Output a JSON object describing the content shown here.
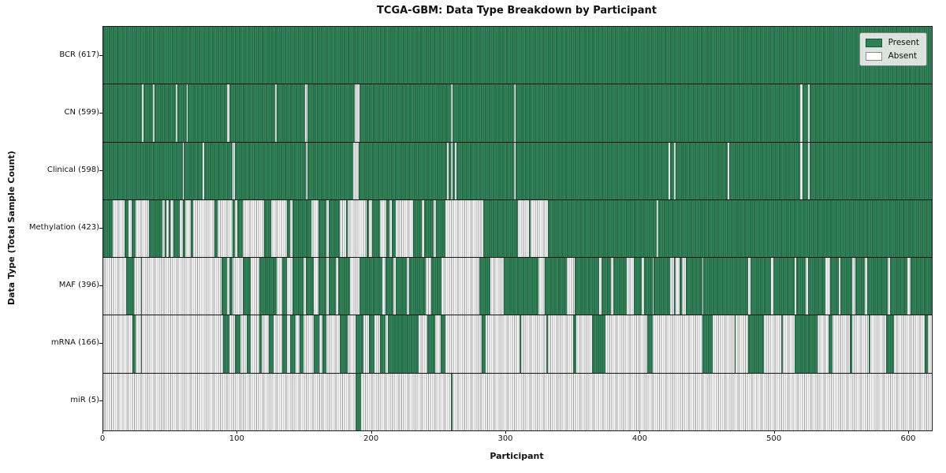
{
  "legend": {
    "present_label": "Present",
    "absent_label": "Absent"
  },
  "colors": {
    "present": "#2e8155",
    "present_edge": "#1d5338",
    "absent": "#ffffff",
    "absent_edge": "#9e9e9e",
    "legend_bg": "#e9ede9",
    "spine": "#1c1c1c"
  },
  "chart_data": {
    "type": "heatmap",
    "title": "TCGA-GBM: Data Type Breakdown by Participant",
    "xlabel": "Participant",
    "ylabel": "Data Type (Total Sample Count)",
    "legend_entries": [
      "Present",
      "Absent"
    ],
    "legend_position": "upper right",
    "x_max": 617,
    "x_ticks": [
      0,
      100,
      200,
      300,
      400,
      500,
      600
    ],
    "value_encoding": {
      "present": 1,
      "absent": 0
    },
    "rows": [
      {
        "label": "BCR (617)",
        "data_type": "BCR",
        "total": 617,
        "present_ranges": [
          [
            0,
            617
          ]
        ]
      },
      {
        "label": "CN (599)",
        "data_type": "CN",
        "total": 599,
        "present_ranges": [
          [
            0,
            29
          ],
          [
            30,
            37
          ],
          [
            38,
            54
          ],
          [
            55,
            62
          ],
          [
            63,
            92
          ],
          [
            94,
            128
          ],
          [
            129,
            150
          ],
          [
            152,
            187
          ],
          [
            191,
            259
          ],
          [
            260,
            306
          ],
          [
            307,
            519
          ],
          [
            521,
            525
          ],
          [
            526,
            617
          ]
        ]
      },
      {
        "label": "Clinical (598)",
        "data_type": "Clinical",
        "total": 598,
        "present_ranges": [
          [
            0,
            59
          ],
          [
            60,
            74
          ],
          [
            75,
            96
          ],
          [
            98,
            151
          ],
          [
            152,
            186
          ],
          [
            190,
            256
          ],
          [
            257,
            259
          ],
          [
            260,
            262
          ],
          [
            263,
            306
          ],
          [
            307,
            421
          ],
          [
            422,
            425
          ],
          [
            426,
            465
          ],
          [
            466,
            519
          ],
          [
            521,
            525
          ],
          [
            526,
            617
          ]
        ]
      },
      {
        "label": "Methylation (423)",
        "data_type": "Methylation",
        "total": 423,
        "present_ranges": [
          [
            0,
            7
          ],
          [
            16,
            19
          ],
          [
            21,
            24
          ],
          [
            34,
            44
          ],
          [
            46,
            47
          ],
          [
            49,
            50
          ],
          [
            52,
            57
          ],
          [
            59,
            61
          ],
          [
            65,
            67
          ],
          [
            83,
            85
          ],
          [
            96,
            98
          ],
          [
            100,
            104
          ],
          [
            120,
            125
          ],
          [
            137,
            139
          ],
          [
            141,
            155
          ],
          [
            160,
            166
          ],
          [
            168,
            176
          ],
          [
            181,
            182
          ],
          [
            196,
            198
          ],
          [
            200,
            206
          ],
          [
            211,
            213
          ],
          [
            215,
            218
          ],
          [
            231,
            237
          ],
          [
            239,
            246
          ],
          [
            248,
            255
          ],
          [
            283,
            309
          ],
          [
            317,
            318
          ],
          [
            331,
            412
          ],
          [
            413,
            617
          ]
        ]
      },
      {
        "label": "MAF (396)",
        "data_type": "MAF",
        "total": 396,
        "present_ranges": [
          [
            17,
            23
          ],
          [
            28,
            29
          ],
          [
            88,
            92
          ],
          [
            94,
            96
          ],
          [
            104,
            110
          ],
          [
            116,
            129
          ],
          [
            133,
            137
          ],
          [
            141,
            149
          ],
          [
            151,
            157
          ],
          [
            160,
            166
          ],
          [
            168,
            173
          ],
          [
            175,
            184
          ],
          [
            191,
            208
          ],
          [
            210,
            216
          ],
          [
            218,
            226
          ],
          [
            228,
            240
          ],
          [
            244,
            252
          ],
          [
            280,
            288
          ],
          [
            298,
            324
          ],
          [
            329,
            345
          ],
          [
            351,
            369
          ],
          [
            371,
            378
          ],
          [
            380,
            390
          ],
          [
            395,
            401
          ],
          [
            403,
            409
          ],
          [
            410,
            422
          ],
          [
            425,
            426
          ],
          [
            429,
            431
          ],
          [
            434,
            446
          ],
          [
            447,
            480
          ],
          [
            482,
            497
          ],
          [
            499,
            515
          ],
          [
            516,
            523
          ],
          [
            525,
            538
          ],
          [
            541,
            548
          ],
          [
            549,
            558
          ],
          [
            560,
            567
          ],
          [
            569,
            584
          ],
          [
            586,
            599
          ],
          [
            601,
            617
          ]
        ]
      },
      {
        "label": "mRNA (166)",
        "data_type": "mRNA",
        "total": 166,
        "present_ranges": [
          [
            22,
            24
          ],
          [
            28,
            29
          ],
          [
            89,
            94
          ],
          [
            98,
            102
          ],
          [
            107,
            110
          ],
          [
            116,
            118
          ],
          [
            123,
            127
          ],
          [
            133,
            137
          ],
          [
            139,
            143
          ],
          [
            146,
            149
          ],
          [
            157,
            161
          ],
          [
            163,
            166
          ],
          [
            176,
            182
          ],
          [
            188,
            194
          ],
          [
            198,
            202
          ],
          [
            206,
            210
          ],
          [
            212,
            235
          ],
          [
            241,
            247
          ],
          [
            251,
            255
          ],
          [
            282,
            285
          ],
          [
            310,
            311
          ],
          [
            330,
            331
          ],
          [
            350,
            352
          ],
          [
            364,
            374
          ],
          [
            405,
            409
          ],
          [
            446,
            454
          ],
          [
            470,
            471
          ],
          [
            480,
            492
          ],
          [
            505,
            506
          ],
          [
            515,
            532
          ],
          [
            540,
            543
          ],
          [
            556,
            558
          ],
          [
            570,
            571
          ],
          [
            583,
            589
          ],
          [
            612,
            614
          ]
        ]
      },
      {
        "label": "miR (5)",
        "data_type": "miR",
        "total": 5,
        "present_ranges": [
          [
            188,
            192
          ],
          [
            259,
            260
          ]
        ]
      }
    ]
  }
}
